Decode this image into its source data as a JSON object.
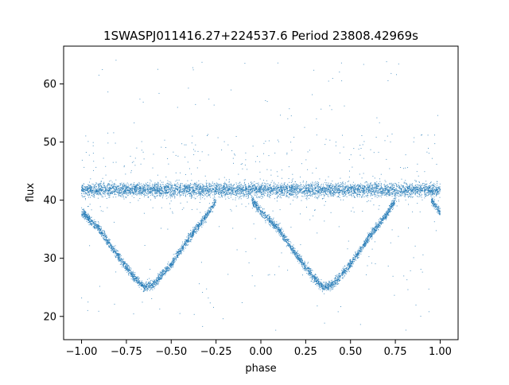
{
  "chart_data": {
    "type": "scatter",
    "title": "1SWASPJ011416.27+224537.6 Period 23808.42969s",
    "xlabel": "phase",
    "ylabel": "flux",
    "xlim": [
      -1.1,
      1.1
    ],
    "ylim": [
      16,
      66.5
    ],
    "x_ticks": [
      -1.0,
      -0.75,
      -0.5,
      -0.25,
      0.0,
      0.25,
      0.5,
      0.75,
      1.0
    ],
    "x_tick_labels": [
      "−1.00",
      "−0.75",
      "−0.50",
      "−0.25",
      "0.00",
      "0.25",
      "0.50",
      "0.75",
      "1.00"
    ],
    "y_ticks": [
      20,
      30,
      40,
      50,
      60
    ],
    "y_tick_labels": [
      "20",
      "30",
      "40",
      "50",
      "60"
    ],
    "grid": false,
    "marker_color": "#1f77b4",
    "series": [
      {
        "description_points": "phase-folded light curve, two cycles shown",
        "baseline_flux": 41.8,
        "baseline_spread": 1.5,
        "eclipse_branches": [
          {
            "x": [
              -1.0,
              -0.9,
              -0.8,
              -0.7,
              -0.65,
              -0.6,
              -0.5,
              -0.4,
              -0.3,
              -0.25
            ],
            "y": [
              38.0,
              35.0,
              30.5,
              26.5,
              25.0,
              25.5,
              29.0,
              33.5,
              37.5,
              40.0
            ]
          },
          {
            "x": [
              -0.05,
              0.0,
              0.1,
              0.2,
              0.3,
              0.35,
              0.4,
              0.5,
              0.6,
              0.7,
              0.75
            ],
            "y": [
              40.0,
              38.0,
              35.0,
              30.5,
              26.5,
              25.0,
              25.5,
              29.0,
              33.5,
              37.5,
              40.0
            ]
          },
          {
            "x": [
              0.95,
              1.0
            ],
            "y": [
              40.0,
              38.0
            ]
          }
        ],
        "outlier_range": [
          17.5,
          64.5
        ]
      }
    ]
  }
}
